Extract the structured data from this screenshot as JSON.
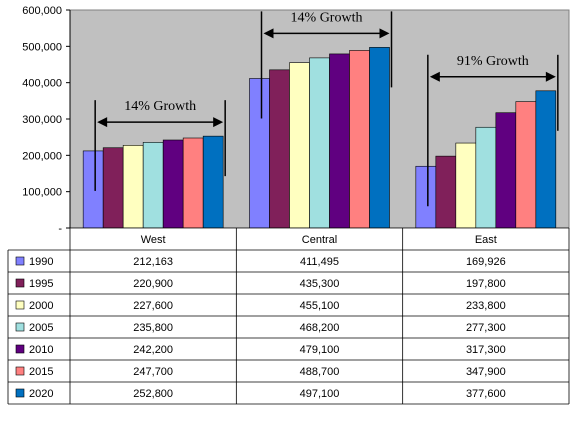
{
  "chart_data": {
    "type": "bar",
    "categories": [
      "West",
      "Central",
      "East"
    ],
    "series": [
      {
        "name": "1990",
        "values": [
          212163,
          411495,
          169926
        ],
        "labels": [
          "212,163",
          "411,495",
          "169,926"
        ],
        "color": "#8080ff"
      },
      {
        "name": "1995",
        "values": [
          220900,
          435300,
          197800
        ],
        "labels": [
          "220,900",
          "435,300",
          "197,800"
        ],
        "color": "#80205a"
      },
      {
        "name": "2000",
        "values": [
          227600,
          455100,
          233800
        ],
        "labels": [
          "227,600",
          "455,100",
          "233,800"
        ],
        "color": "#ffffc0"
      },
      {
        "name": "2005",
        "values": [
          235800,
          468200,
          277300
        ],
        "labels": [
          "235,800",
          "468,200",
          "277,300"
        ],
        "color": "#a0e0e0"
      },
      {
        "name": "2010",
        "values": [
          242200,
          479100,
          317300
        ],
        "labels": [
          "242,200",
          "479,100",
          "317,300"
        ],
        "color": "#600080"
      },
      {
        "name": "2015",
        "values": [
          247700,
          488700,
          347900
        ],
        "labels": [
          "247,700",
          "488,700",
          "347,900"
        ],
        "color": "#ff8080"
      },
      {
        "name": "2020",
        "values": [
          252800,
          497100,
          377600
        ],
        "labels": [
          "252,800",
          "497,100",
          "377,600"
        ],
        "color": "#0070c0"
      }
    ],
    "ylim": [
      0,
      600000
    ],
    "yticks": [
      {
        "value": 600000,
        "label": "600,000"
      },
      {
        "value": 500000,
        "label": "500,000"
      },
      {
        "value": 400000,
        "label": "400,000"
      },
      {
        "value": 300000,
        "label": "300,000"
      },
      {
        "value": 200000,
        "label": "200,000"
      },
      {
        "value": 100000,
        "label": "100,000"
      },
      {
        "value": 0,
        "label": "-"
      }
    ],
    "annotations": [
      {
        "text": "14% Growth",
        "category": "West"
      },
      {
        "text": "14% Growth",
        "category": "Central"
      },
      {
        "text": "91% Growth",
        "category": "East"
      }
    ],
    "plot_background": "#c0c0c0",
    "grid": false,
    "legend": "data-table-left"
  }
}
